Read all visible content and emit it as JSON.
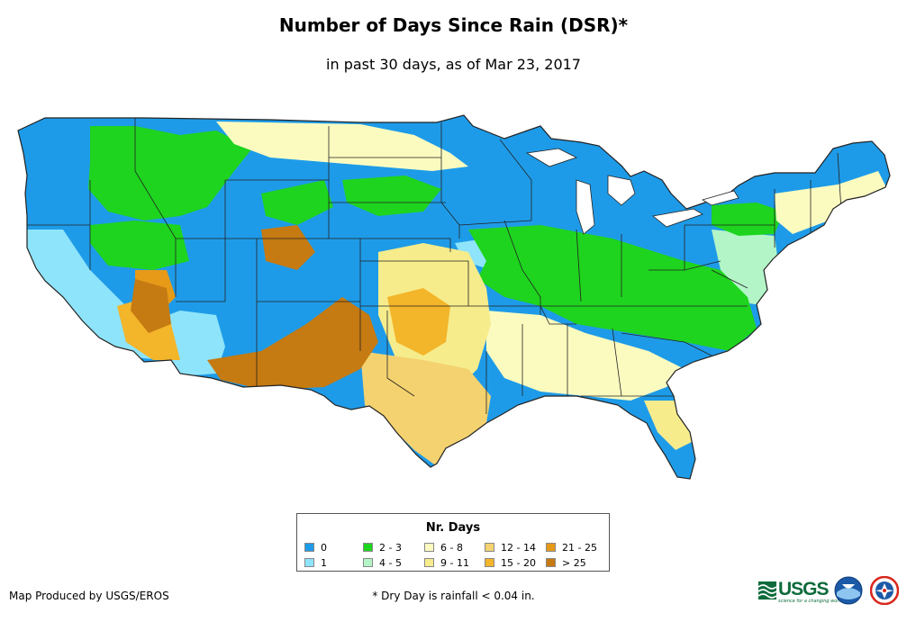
{
  "title": "Number of Days Since Rain (DSR)*",
  "subtitle": "in past 30 days, as of Mar 23, 2017",
  "legend": {
    "title": "Nr. Days",
    "items": [
      {
        "label": "0",
        "color": "#1e9be8"
      },
      {
        "label": "1",
        "color": "#8ee4fa"
      },
      {
        "label": "2 - 3",
        "color": "#1ed41e"
      },
      {
        "label": "4 - 5",
        "color": "#b4f5c8"
      },
      {
        "label": "6 - 8",
        "color": "#fbfbc0"
      },
      {
        "label": "9 - 11",
        "color": "#f6ec8c"
      },
      {
        "label": "12 - 14",
        "color": "#f4d270"
      },
      {
        "label": "15 - 20",
        "color": "#f3b52a"
      },
      {
        "label": "21 - 25",
        "color": "#e69a18"
      },
      {
        "label": "> 25",
        "color": "#c67a12"
      }
    ]
  },
  "credit": "Map Produced by USGS/EROS",
  "footnote": "* Dry Day is rainfall < 0.04 in.",
  "logos": {
    "usgs_word": "USGS",
    "usgs_tagline": "science for a changing world",
    "usgs_color": "#0e6b3c",
    "noaa_color": "#1c5aa8",
    "nws_color": "#d9261c"
  },
  "map": {
    "region": "contiguous-us",
    "border_color": "#222222"
  }
}
